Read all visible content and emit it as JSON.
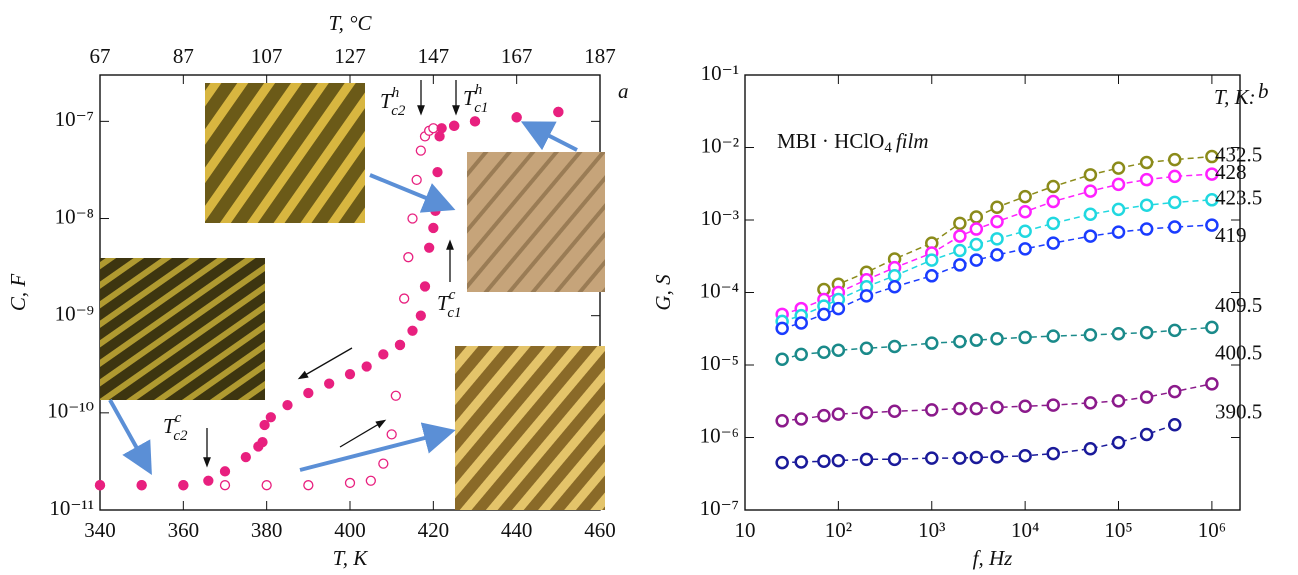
{
  "chart_data": [
    {
      "type": "scatter",
      "panel_label": "a",
      "xlabel": "T, K",
      "ylabel": "C, F",
      "x2label": "T, °C",
      "xlim": [
        340,
        460
      ],
      "xticks": [
        340,
        360,
        380,
        400,
        420,
        440,
        460
      ],
      "x2lim": [
        67,
        187
      ],
      "x2ticks": [
        67,
        87,
        107,
        127,
        147,
        167,
        187
      ],
      "yscale": "log",
      "ylim": [
        1e-11,
        3e-07
      ],
      "yticks": [
        {
          "value": 1e-11,
          "label": "10⁻¹¹"
        },
        {
          "value": 1e-10,
          "label": "10⁻¹⁰"
        },
        {
          "value": 1e-09,
          "label": "10⁻⁹"
        },
        {
          "value": 1e-08,
          "label": "10⁻⁸"
        },
        {
          "value": 1e-07,
          "label": "10⁻⁷"
        }
      ],
      "series": [
        {
          "color": "#e8207f",
          "marker": "open",
          "x": [
            340,
            350,
            360,
            370,
            380,
            390,
            400,
            405,
            408,
            410,
            411,
            412,
            413,
            414,
            415,
            416,
            417,
            418,
            419,
            420,
            425,
            430,
            440,
            450
          ],
          "values": [
            1.8e-11,
            1.8e-11,
            1.8e-11,
            1.8e-11,
            1.8e-11,
            1.8e-11,
            1.9e-11,
            2e-11,
            3e-11,
            6e-11,
            1.5e-10,
            5e-10,
            1.5e-09,
            4e-09,
            1e-08,
            2.5e-08,
            5e-08,
            7e-08,
            8e-08,
            8.5e-08,
            9e-08,
            1e-07,
            1.1e-07,
            1.25e-07
          ]
        },
        {
          "color": "#e8207f",
          "marker": "filled",
          "x": [
            450,
            440,
            430,
            425,
            422,
            421.5,
            421,
            420.5,
            420,
            419,
            418,
            417,
            415,
            412,
            408,
            404,
            400,
            395,
            390,
            385,
            381,
            379.5,
            379,
            378,
            375,
            370,
            366,
            360,
            350,
            340
          ],
          "values": [
            1.25e-07,
            1.1e-07,
            1e-07,
            9e-08,
            8.5e-08,
            7e-08,
            3e-08,
            1.2e-08,
            8e-09,
            5e-09,
            2e-09,
            1e-09,
            7e-10,
            5e-10,
            4e-10,
            3e-10,
            2.5e-10,
            2e-10,
            1.6e-10,
            1.2e-10,
            9e-11,
            7.5e-11,
            5e-11,
            4.5e-11,
            3.5e-11,
            2.5e-11,
            2e-11,
            1.8e-11,
            1.8e-11,
            1.8e-11
          ]
        }
      ],
      "annotations": [
        {
          "text": "T",
          "sub": "c2",
          "sup": "h"
        },
        {
          "text": "T",
          "sub": "c1",
          "sup": "h"
        },
        {
          "text": "T",
          "sub": "c1",
          "sup": "c"
        },
        {
          "text": "T",
          "sub": "c2",
          "sup": "c"
        }
      ]
    },
    {
      "type": "scatter",
      "panel_label": "b",
      "xlabel": "f, Hz",
      "ylabel": "G, S",
      "xscale": "log",
      "yscale": "log",
      "xlim": [
        10,
        2000000
      ],
      "xticks": [
        10,
        {
          "value": 100,
          "label": "10²"
        },
        {
          "value": 1000,
          "label": "10³"
        },
        {
          "value": 10000,
          "label": "10⁴"
        },
        {
          "value": 100000,
          "label": "10⁵"
        },
        {
          "value": 1000000,
          "label": "10⁶"
        }
      ],
      "ylim": [
        1e-07,
        0.1
      ],
      "yticks": [
        {
          "value": 1e-07,
          "label": "10⁻⁷"
        },
        {
          "value": 1e-06,
          "label": "10⁻⁶"
        },
        {
          "value": 1e-05,
          "label": "10⁻⁵"
        },
        {
          "value": 0.0001,
          "label": "10⁻⁴"
        },
        {
          "value": 0.001,
          "label": "10⁻³"
        },
        {
          "value": 0.01,
          "label": "10⁻²"
        },
        {
          "value": 0.1,
          "label": "10⁻¹"
        }
      ],
      "x": [
        25,
        40,
        70,
        100,
        200,
        400,
        1000,
        2000,
        3000,
        5000,
        10000,
        20000,
        50000,
        100000,
        200000,
        400000,
        1000000
      ],
      "legend_title": "T, K:",
      "annotation": {
        "text": "MBI · HClO",
        "sub": "4",
        "italic": "film"
      },
      "series": [
        {
          "name": "432.5",
          "color": "#8b8b1a",
          "values": [
            null,
            null,
            0.00011,
            0.00013,
            0.00019,
            0.00029,
            0.00048,
            0.0009,
            0.0011,
            0.0015,
            0.0021,
            0.0029,
            0.0042,
            0.0052,
            0.0062,
            0.0068,
            0.0075
          ]
        },
        {
          "name": "428",
          "color": "#ff20ff",
          "values": [
            5e-05,
            6e-05,
            8e-05,
            0.0001,
            0.00015,
            0.00022,
            0.00035,
            0.0006,
            0.00075,
            0.00095,
            0.0013,
            0.0018,
            0.0025,
            0.0031,
            0.0036,
            0.004,
            0.0043
          ]
        },
        {
          "name": "423.5",
          "color": "#20d8e0",
          "values": [
            4e-05,
            4.8e-05,
            6.5e-05,
            8e-05,
            0.00012,
            0.00017,
            0.00028,
            0.00038,
            0.00046,
            0.00055,
            0.0007,
            0.0009,
            0.0012,
            0.0014,
            0.0016,
            0.00175,
            0.0019
          ]
        },
        {
          "name": "419",
          "color": "#1a3cff",
          "values": [
            3.2e-05,
            3.8e-05,
            5e-05,
            6e-05,
            9e-05,
            0.00012,
            0.00017,
            0.00024,
            0.00028,
            0.00033,
            0.0004,
            0.00048,
            0.0006,
            0.00068,
            0.00075,
            0.0008,
            0.00085
          ]
        },
        {
          "name": "409.5",
          "color": "#1a8a8a",
          "values": [
            1.2e-05,
            1.4e-05,
            1.5e-05,
            1.6e-05,
            1.7e-05,
            1.8e-05,
            2e-05,
            2.1e-05,
            2.2e-05,
            2.3e-05,
            2.4e-05,
            2.5e-05,
            2.6e-05,
            2.7e-05,
            2.8e-05,
            3e-05,
            3.3e-05
          ]
        },
        {
          "name": "400.5",
          "color": "#8b1a8b",
          "values": [
            1.7e-06,
            1.8e-06,
            2e-06,
            2.1e-06,
            2.2e-06,
            2.3e-06,
            2.4e-06,
            2.5e-06,
            2.5e-06,
            2.6e-06,
            2.7e-06,
            2.8e-06,
            3e-06,
            3.2e-06,
            3.6e-06,
            4.3e-06,
            5.5e-06
          ]
        },
        {
          "name": "390.5",
          "color": "#1a1a9a",
          "values": [
            4.5e-07,
            4.6e-07,
            4.7e-07,
            4.8e-07,
            5e-07,
            5e-07,
            5.2e-07,
            5.2e-07,
            5.3e-07,
            5.4e-07,
            5.6e-07,
            6e-07,
            7e-07,
            8.5e-07,
            1.1e-06,
            1.5e-06,
            null
          ]
        }
      ]
    }
  ]
}
